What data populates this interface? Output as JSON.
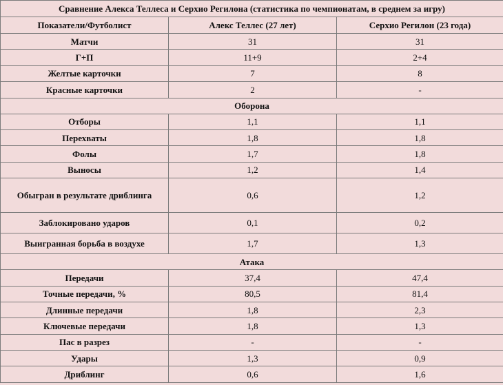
{
  "table": {
    "title": "Сравнение Алекса Теллеса и Серхио Регилона (статистика по чемпионатам, в среднем за игру)",
    "headers": [
      "Показатели/Футболист",
      "Алекс Теллес (27 лет)",
      "Серхио Регилон (23 года)"
    ],
    "general": [
      {
        "metric": "Матчи",
        "a": "31",
        "b": "31"
      },
      {
        "metric": "Г+П",
        "a": "11+9",
        "b": "2+4"
      },
      {
        "metric": "Желтые карточки",
        "a": "7",
        "b": "8"
      },
      {
        "metric": "Красные карточки",
        "a": "2",
        "b": "-"
      }
    ],
    "defense_title": "Оборона",
    "defense": [
      {
        "metric": "Отборы",
        "a": "1,1",
        "b": "1,1"
      },
      {
        "metric": "Перехваты",
        "a": "1,8",
        "b": "1,8"
      },
      {
        "metric": "Фолы",
        "a": "1,7",
        "b": "1,8"
      },
      {
        "metric": "Выносы",
        "a": "1,2",
        "b": "1,4"
      },
      {
        "metric": "Обыгран в результате дриблинга",
        "a": "0,6",
        "b": "1,2"
      },
      {
        "metric": "Заблокировано ударов",
        "a": "0,1",
        "b": "0,2"
      },
      {
        "metric": "Выигранная борьба в воздухе",
        "a": "1,7",
        "b": "1,3"
      }
    ],
    "attack_title": "Атака",
    "attack": [
      {
        "metric": "Передачи",
        "a": "37,4",
        "b": "47,4"
      },
      {
        "metric": "Точные передачи, %",
        "a": "80,5",
        "b": "81,4"
      },
      {
        "metric": "Длинные передачи",
        "a": "1,8",
        "b": "2,3"
      },
      {
        "metric": "Ключевые передачи",
        "a": "1,8",
        "b": "1,3"
      },
      {
        "metric": "Пас в разрез",
        "a": "-",
        "b": "-"
      },
      {
        "metric": "Удары",
        "a": "1,3",
        "b": "0,9"
      },
      {
        "metric": "Дриблинг",
        "a": "0,6",
        "b": "1,6"
      }
    ]
  }
}
